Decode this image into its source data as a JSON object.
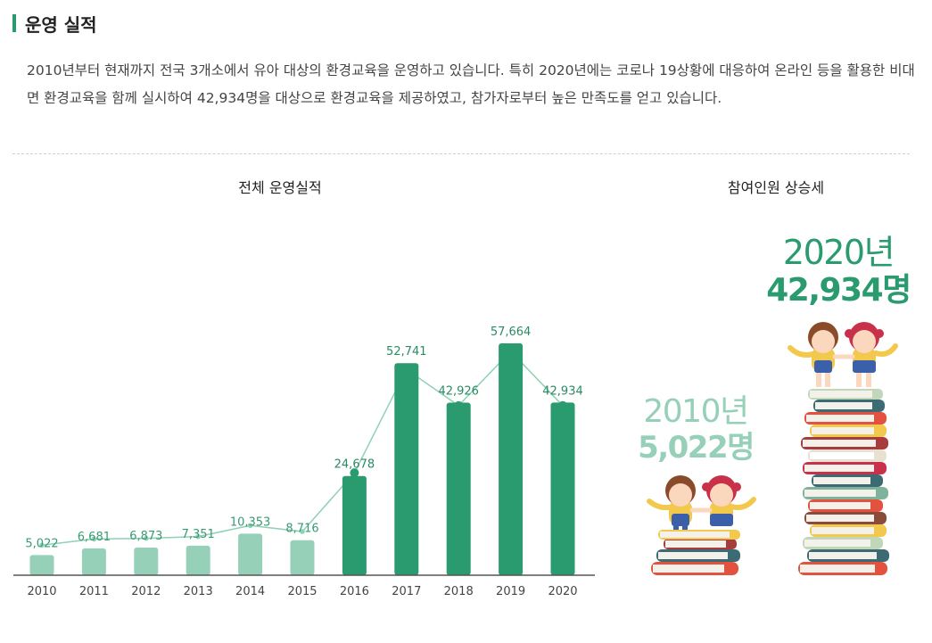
{
  "section": {
    "title": "운영 실적"
  },
  "intro": "2010년부터 현재까지 전국 3개소에서 유아 대상의 환경교육을 운영하고 있습니다. 특히 2020년에는 코로나 19상황에 대응하여 온라인 등을 활용한 비대면 환경교육을 함께 실시하여 42,934명을 대상으로 환경교육을 제공하였고, 참가자로부터 높은 만족도를 얻고 있습니다.",
  "trend": {
    "title": "참여인원 상승세",
    "recent": {
      "year": "2020년",
      "count": "42,934명"
    },
    "first": {
      "year": "2010년",
      "count": "5,022명"
    }
  },
  "chart_data": {
    "type": "bar",
    "title": "전체 운영실적",
    "categories": [
      "2010",
      "2011",
      "2012",
      "2013",
      "2014",
      "2015",
      "2016",
      "2017",
      "2018",
      "2019",
      "2020"
    ],
    "values": [
      5022,
      6681,
      6873,
      7351,
      10353,
      8716,
      24678,
      52741,
      42926,
      57664,
      42934
    ],
    "value_labels": [
      "5,022",
      "6,681",
      "6,873",
      "7,351",
      "10,353",
      "8,716",
      "24,678",
      "52,741",
      "42,926",
      "57,664",
      "42,934"
    ],
    "line_overlay_values": [
      5022,
      6681,
      6873,
      7351,
      10353,
      8716,
      24678,
      52741,
      42926,
      57664,
      42934
    ],
    "xlabel": "",
    "ylabel": "",
    "grid": false,
    "legend": "none",
    "colors": {
      "early_bar": "#97d0b8",
      "late_bar": "#2a9a6f",
      "early_label": "#3a9a76",
      "late_label": "#2a8a64",
      "line": "#8fd1b4",
      "marker": "#2a9a6f",
      "axis": "#555555"
    }
  },
  "colors": {
    "accent": "#2a9a6f",
    "light_accent": "#97d0b8"
  }
}
